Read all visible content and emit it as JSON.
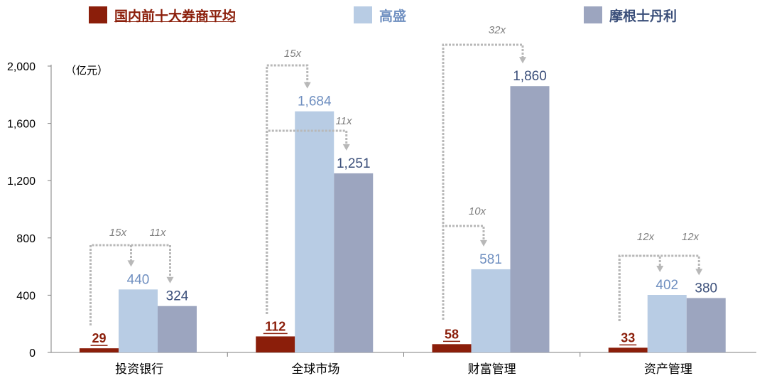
{
  "chart_data": {
    "type": "bar",
    "unit_label": "（亿元）",
    "categories": [
      "投资银行",
      "全球市场",
      "财富管理",
      "资产管理"
    ],
    "ylim": [
      0,
      2000
    ],
    "yticks": [
      0,
      400,
      800,
      1200,
      1600,
      2000
    ],
    "ytick_labels": [
      "0",
      "400",
      "800",
      "1,200",
      "1,600",
      "2,000"
    ],
    "series": [
      {
        "name": "国内前十大券商平均",
        "color": "#8B1E0A",
        "label_color": "#8B1E0A",
        "values": [
          29,
          112,
          58,
          33
        ],
        "labels": [
          "29",
          "112",
          "58",
          "33"
        ]
      },
      {
        "name": "高盛",
        "color": "#B8CCE4",
        "label_color": "#6F8FC0",
        "values": [
          440,
          1684,
          581,
          402
        ],
        "labels": [
          "440",
          "1,684",
          "581",
          "402"
        ]
      },
      {
        "name": "摩根士丹利",
        "color": "#9CA5BF",
        "label_color": "#3B4F7A",
        "values": [
          324,
          1251,
          1860,
          380
        ],
        "labels": [
          "324",
          "1,251",
          "1,860",
          "380"
        ]
      }
    ],
    "multiples": [
      {
        "category": 0,
        "target_series": 1,
        "label": "15x"
      },
      {
        "category": 0,
        "target_series": 2,
        "label": "11x"
      },
      {
        "category": 1,
        "target_series": 1,
        "label": "15x"
      },
      {
        "category": 1,
        "target_series": 2,
        "label": "11x"
      },
      {
        "category": 2,
        "target_series": 1,
        "label": "10x"
      },
      {
        "category": 2,
        "target_series": 2,
        "label": "32x"
      },
      {
        "category": 3,
        "target_series": 1,
        "label": "12x"
      },
      {
        "category": 3,
        "target_series": 2,
        "label": "12x"
      }
    ],
    "grid": false,
    "legend_position": "top"
  }
}
